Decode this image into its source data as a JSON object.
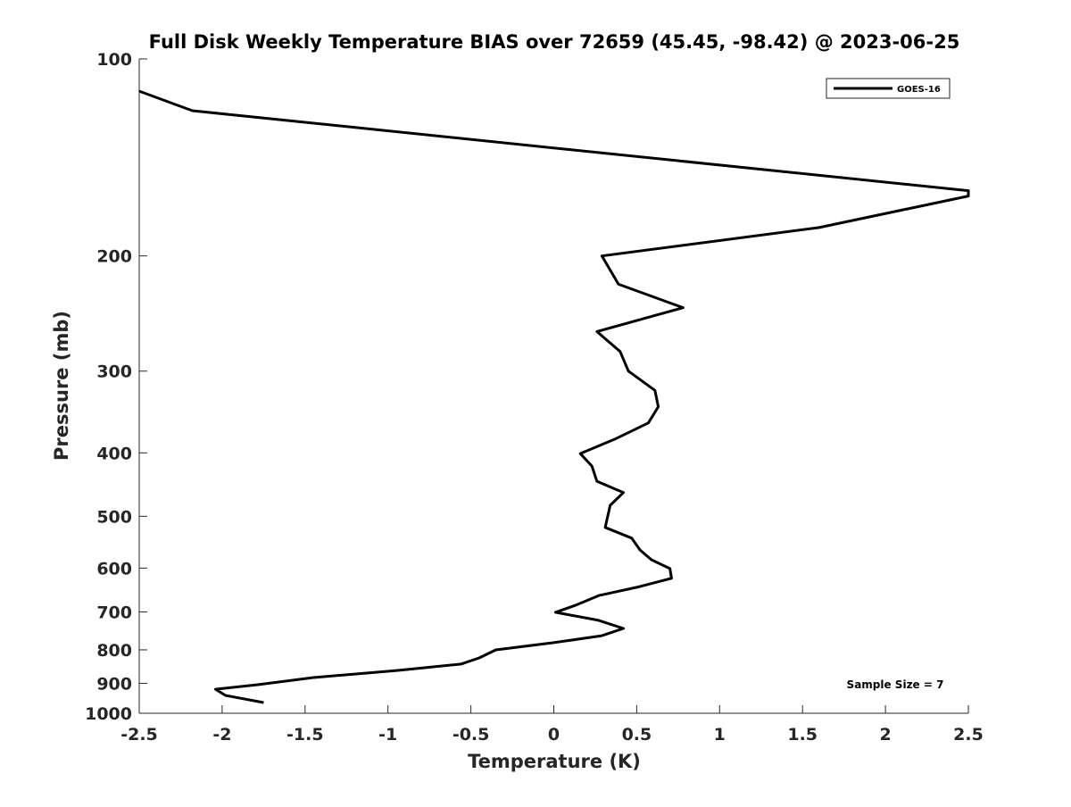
{
  "chart_data": {
    "type": "line",
    "title": "Full Disk Weekly Temperature BIAS over 72659 (45.45, -98.42) @ 2023-06-25",
    "xlabel": "Temperature (K)",
    "ylabel": "Pressure (mb)",
    "xlim": [
      -2.5,
      2.5
    ],
    "ylim": [
      100,
      1000
    ],
    "yscale": "log",
    "y_reversed": true,
    "grid": false,
    "xticks": [
      "-2.5",
      "-2",
      "-1.5",
      "-1",
      "-0.5",
      "0",
      "0.5",
      "1",
      "1.5",
      "2",
      "2.5"
    ],
    "xtick_values": [
      -2.5,
      -2,
      -1.5,
      -1,
      -0.5,
      0,
      0.5,
      1,
      1.5,
      2,
      2.5
    ],
    "yticks": [
      "100",
      "200",
      "300",
      "400",
      "500",
      "600",
      "700",
      "800",
      "900",
      "1000"
    ],
    "ytick_values": [
      100,
      200,
      300,
      400,
      500,
      600,
      700,
      800,
      900,
      1000
    ],
    "legend": {
      "placement": "top-right",
      "entries": [
        "GOES-16"
      ]
    },
    "annotation": "Sample Size = 7",
    "series": [
      {
        "name": "GOES-16",
        "color": "#000000",
        "points": [
          [
            -2.5,
            112
          ],
          [
            -2.18,
            120
          ],
          [
            2.5,
            159
          ],
          [
            2.5,
            162
          ],
          [
            1.6,
            181
          ],
          [
            0.29,
            200
          ],
          [
            0.39,
            221
          ],
          [
            0.78,
            240
          ],
          [
            0.26,
            261
          ],
          [
            0.4,
            280
          ],
          [
            0.45,
            300
          ],
          [
            0.61,
            321
          ],
          [
            0.63,
            340
          ],
          [
            0.57,
            360
          ],
          [
            0.37,
            381
          ],
          [
            0.16,
            401
          ],
          [
            0.23,
            419
          ],
          [
            0.26,
            442
          ],
          [
            0.42,
            460
          ],
          [
            0.34,
            481
          ],
          [
            0.31,
            520
          ],
          [
            0.47,
            540
          ],
          [
            0.52,
            563
          ],
          [
            0.59,
            583
          ],
          [
            0.7,
            601
          ],
          [
            0.71,
            622
          ],
          [
            0.5,
            642
          ],
          [
            0.27,
            661
          ],
          [
            0.13,
            684
          ],
          [
            0.01,
            701
          ],
          [
            0.27,
            721
          ],
          [
            0.42,
            742
          ],
          [
            0.29,
            761
          ],
          [
            0.0,
            780
          ],
          [
            -0.35,
            800
          ],
          [
            -0.45,
            823
          ],
          [
            -0.56,
            841
          ],
          [
            -0.94,
            860
          ],
          [
            -1.45,
            882
          ],
          [
            -1.78,
            904
          ],
          [
            -2.04,
            919
          ],
          [
            -1.98,
            939
          ],
          [
            -1.75,
            963
          ]
        ]
      }
    ]
  }
}
